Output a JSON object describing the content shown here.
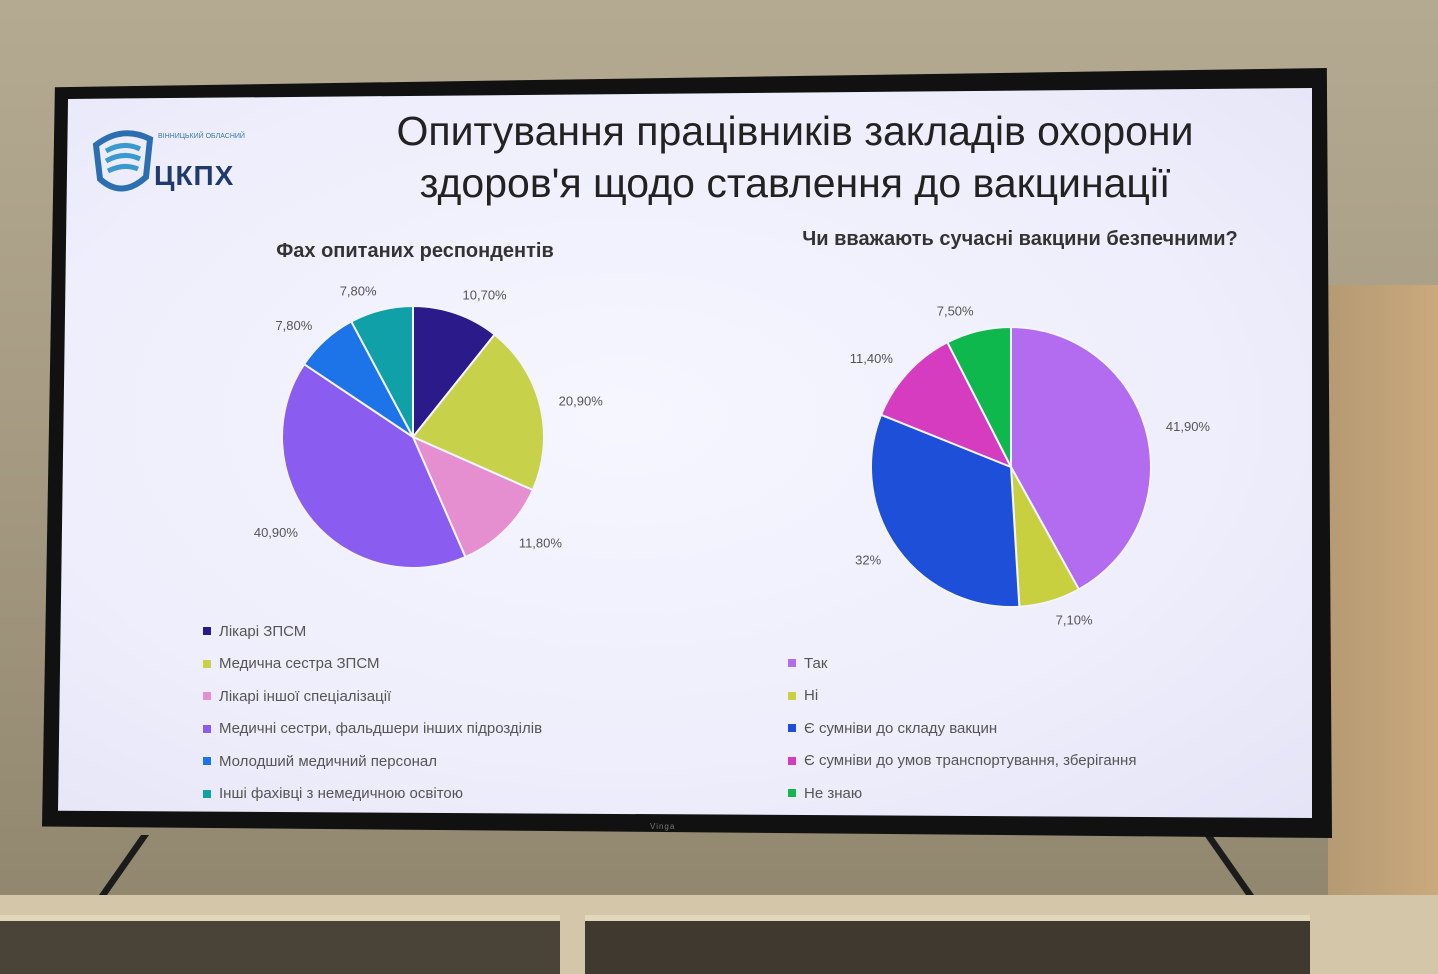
{
  "slide": {
    "title_line1": "Опитування працівників закладів охорони",
    "title_line2": "здоров'я щодо ставлення до вакцинації",
    "logo_text": "ЦКПХ",
    "logo_small": "ВІННИЦЬКИЙ ОБЛАСНИЙ",
    "tv_brand": "Vinga"
  },
  "chart_data": [
    {
      "type": "pie",
      "title": "Фах опитаних  респондентів",
      "legend_placement": "bottom",
      "slices": [
        {
          "label": "Лікарі ЗПСМ",
          "value": 10.7,
          "display": "10,70%",
          "color": "#2a1a8a"
        },
        {
          "label": "Медична сестра ЗПСМ",
          "value": 20.9,
          "display": "20,90%",
          "color": "#c8d14a"
        },
        {
          "label": "Лікарі іншої спеціалізації",
          "value": 11.8,
          "display": "11,80%",
          "color": "#e58fd0"
        },
        {
          "label": "Медичні сестри, фальдшери інших підрозділів",
          "value": 40.9,
          "display": "40,90%",
          "color": "#8a5cf0"
        },
        {
          "label": "Молодший медичний персонал",
          "value": 7.8,
          "display": "7,80%",
          "color": "#1d73e8"
        },
        {
          "label": "Інші фахівці з немедичною освітою",
          "value": 7.8,
          "display": "7,80%",
          "color": "#0fa0a8"
        }
      ]
    },
    {
      "type": "pie",
      "title": "Чи вважають сучасні вакцини безпечними?",
      "legend_placement": "bottom",
      "slices": [
        {
          "label": "Так",
          "value": 41.9,
          "display": "41,90%",
          "color": "#b36cf0"
        },
        {
          "label": "Ні",
          "value": 7.1,
          "display": "7,10%",
          "color": "#c9d040"
        },
        {
          "label": "Є сумніви до складу вакцин",
          "value": 32,
          "display": "32%",
          "color": "#1e4fd8"
        },
        {
          "label": "Є сумніви до умов транспортування, зберігання",
          "value": 11.4,
          "display": "11,40%",
          "color": "#d63cc0"
        },
        {
          "label": "Не знаю",
          "value": 7.5,
          "display": "7,50%",
          "color": "#0fb84c"
        }
      ]
    }
  ]
}
